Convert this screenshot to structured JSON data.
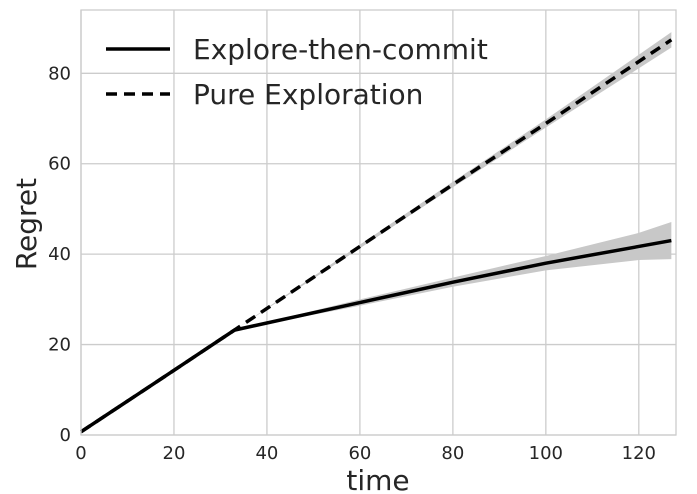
{
  "chart_data": {
    "type": "line",
    "xlabel": "time",
    "ylabel": "Regret",
    "xlim": [
      0,
      128
    ],
    "ylim": [
      0,
      94
    ],
    "xticks": [
      0,
      20,
      40,
      60,
      80,
      100,
      120
    ],
    "yticks": [
      0,
      20,
      40,
      60,
      80
    ],
    "grid": true,
    "legend_position": "top-left",
    "series": [
      {
        "name": "Explore-then-commit",
        "line_style": "solid",
        "color": "#000000",
        "x": [
          0,
          20,
          33,
          60,
          80,
          100,
          120,
          127
        ],
        "y": [
          0.7,
          14.3,
          23.2,
          29.3,
          33.8,
          38.0,
          41.7,
          43.0
        ],
        "band_lower": [
          0.7,
          14.3,
          23.2,
          28.6,
          32.8,
          36.4,
          38.7,
          38.9
        ],
        "band_upper": [
          0.7,
          14.3,
          23.2,
          30.0,
          34.8,
          39.6,
          44.7,
          47.1
        ]
      },
      {
        "name": "Pure Exploration",
        "line_style": "dashed",
        "color": "#000000",
        "x": [
          0,
          20,
          33,
          60,
          80,
          100,
          127
        ],
        "y": [
          0.7,
          14.3,
          23.2,
          41.7,
          55.4,
          68.9,
          87.4
        ],
        "band_lower": [
          0.7,
          14.3,
          23.2,
          41.3,
          54.8,
          68.0,
          85.7
        ],
        "band_upper": [
          0.7,
          14.3,
          23.2,
          42.1,
          56.0,
          69.8,
          89.1
        ]
      }
    ],
    "band_color": "#c8c8c8"
  }
}
